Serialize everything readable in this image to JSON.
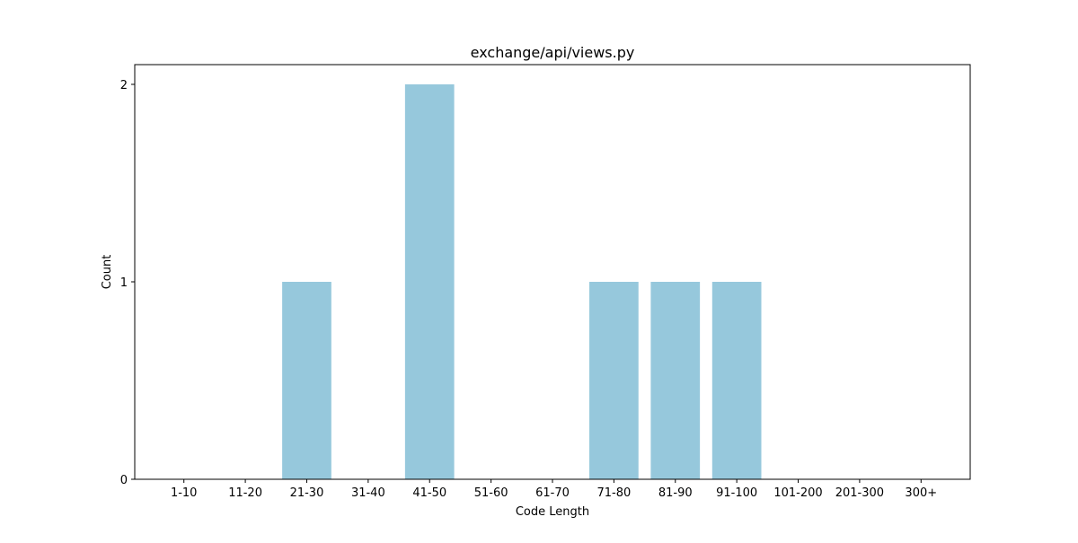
{
  "chart_data": {
    "type": "bar",
    "title": "exchange/api/views.py",
    "xlabel": "Code Length",
    "ylabel": "Count",
    "categories": [
      "1-10",
      "11-20",
      "21-30",
      "31-40",
      "41-50",
      "51-60",
      "61-70",
      "71-80",
      "81-90",
      "91-100",
      "101-200",
      "201-300",
      "300+"
    ],
    "values": [
      0,
      0,
      1,
      0,
      2,
      0,
      0,
      1,
      1,
      1,
      0,
      0,
      0
    ],
    "ylim": [
      0,
      2.1
    ],
    "yticks": [
      "0",
      "1",
      "2"
    ],
    "bar_color": "#96c8dc",
    "grid": false,
    "legend": "none"
  }
}
